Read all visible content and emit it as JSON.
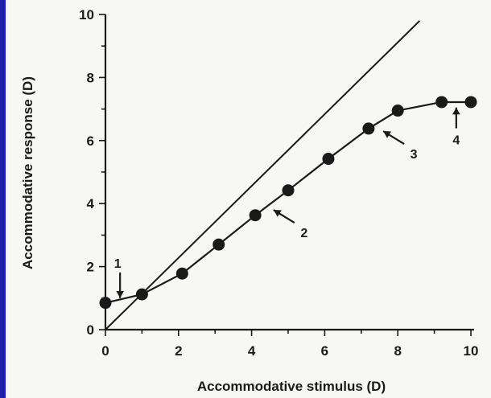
{
  "chart_data": {
    "type": "line",
    "xlabel": "Accommodative stimulus (D)",
    "ylabel": "Accommodative response (D)",
    "xlim": [
      0,
      10
    ],
    "ylim": [
      0,
      10
    ],
    "x_ticks": [
      "0",
      "2",
      "4",
      "6",
      "8",
      "10"
    ],
    "y_ticks": [
      "0",
      "2",
      "4",
      "6",
      "8",
      "10"
    ],
    "grid": false,
    "legend": "none",
    "series": [
      {
        "x": [
          0,
          1.0,
          2.1,
          3.1,
          4.1,
          5.0,
          6.1,
          7.2,
          8.0,
          9.2,
          10.0
        ],
        "y": [
          0.85,
          1.12,
          1.78,
          2.7,
          3.63,
          4.42,
          5.42,
          6.38,
          6.95,
          7.22,
          7.22
        ],
        "markers": true
      }
    ],
    "reference_line": {
      "x": [
        0,
        8.6
      ],
      "y": [
        0,
        9.8
      ]
    },
    "annotations": [
      {
        "label": "1",
        "x": 0.4,
        "y": 1.0,
        "arrow": "down"
      },
      {
        "label": "2",
        "x": 4.6,
        "y": 3.8,
        "arrow": "up-left"
      },
      {
        "label": "3",
        "x": 7.6,
        "y": 6.3,
        "arrow": "up-left"
      },
      {
        "label": "4",
        "x": 9.6,
        "y": 7.05,
        "arrow": "up"
      }
    ]
  },
  "colors": {
    "ink": "#1a1a1a",
    "paper": "#f7f7f5",
    "border": "#1e1ea8"
  }
}
